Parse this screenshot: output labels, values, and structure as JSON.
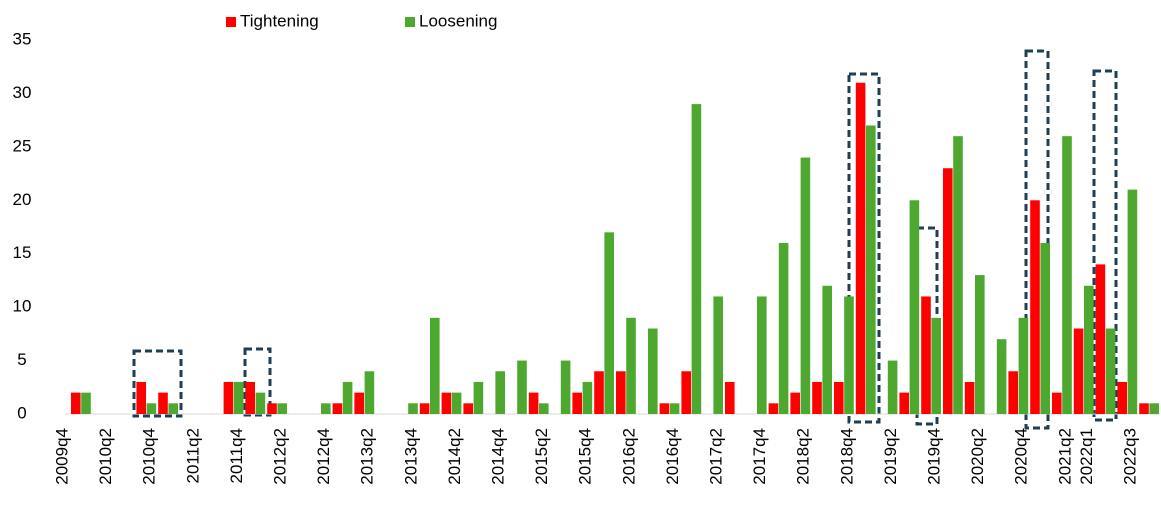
{
  "chart_data": {
    "type": "bar",
    "categories": [
      "2009q4",
      null,
      "2010q2",
      null,
      "2010q4",
      null,
      "2011q2",
      null,
      "2011q4",
      null,
      "2012q2",
      null,
      "2012q4",
      null,
      "2013q2",
      null,
      "2013q4",
      null,
      "2014q2",
      null,
      "2014q4",
      null,
      "2015q2",
      null,
      "2015q4",
      null,
      "2016q2",
      null,
      "2016q4",
      null,
      "2017q2",
      null,
      "2017q4",
      null,
      "2018q2",
      null,
      "2018q4",
      null,
      "2019q2",
      null,
      "2019q4",
      null,
      "2020q2",
      null,
      "2020q4",
      null,
      "2021q2",
      "2022q1",
      null,
      "2022q3"
    ],
    "series": [
      {
        "name": "Tightening",
        "color": "#ff0000",
        "values": [
          2,
          0,
          0,
          3,
          2,
          0,
          0,
          3,
          3,
          1,
          0,
          0,
          1,
          2,
          0,
          0,
          1,
          2,
          1,
          0,
          0,
          2,
          0,
          2,
          4,
          4,
          0,
          1,
          4,
          0,
          3,
          0,
          1,
          2,
          3,
          3,
          31,
          0,
          2,
          11,
          23,
          3,
          0,
          4,
          20,
          2,
          8,
          14,
          3,
          1
        ]
      },
      {
        "name": "Loosening",
        "color": "#4ea72e",
        "values": [
          2,
          0,
          0,
          1,
          1,
          0,
          0,
          3,
          2,
          1,
          0,
          1,
          3,
          4,
          0,
          1,
          9,
          2,
          3,
          4,
          5,
          1,
          5,
          3,
          17,
          9,
          8,
          1,
          29,
          11,
          0,
          11,
          16,
          24,
          12,
          11,
          27,
          5,
          20,
          9,
          26,
          13,
          7,
          9,
          16,
          26,
          12,
          8,
          21,
          1
        ]
      }
    ],
    "ylim": [
      0,
      35
    ],
    "yticks": [
      0,
      5,
      10,
      15,
      20,
      25,
      30,
      35
    ],
    "legend": "top"
  }
}
